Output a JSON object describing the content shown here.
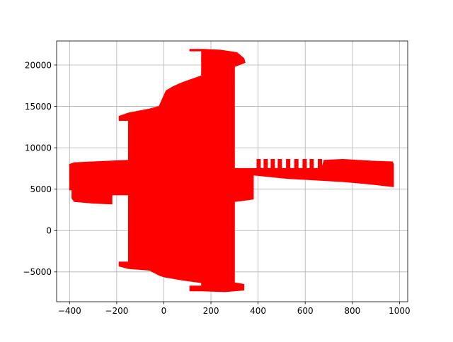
{
  "chart_data": {
    "type": "area",
    "title": "",
    "xlabel": "",
    "ylabel": "",
    "xlim": [
      -455,
      1035
    ],
    "ylim": [
      -8600,
      22900
    ],
    "xticks": [
      -400,
      -200,
      0,
      200,
      400,
      600,
      800,
      1000
    ],
    "yticks": [
      -5000,
      0,
      5000,
      10000,
      15000,
      20000
    ],
    "xtick_labels": [
      "−400",
      "−200",
      "0",
      "200",
      "400",
      "600",
      "800",
      "1000"
    ],
    "ytick_labels": [
      "−5000",
      "0",
      "5000",
      "10000",
      "15000",
      "20000"
    ],
    "grid": true,
    "legend": "none",
    "fill_color": "#ff0000",
    "grid_color": "#b0b0b0",
    "series": [
      {
        "fill": [
          [
            -400,
            8000
          ],
          [
            -380,
            8200
          ],
          [
            -300,
            8300
          ],
          [
            -150,
            8500
          ],
          [
            -150,
            13300
          ],
          [
            -190,
            13300
          ],
          [
            -190,
            13800
          ],
          [
            -150,
            14200
          ],
          [
            -60,
            14700
          ],
          [
            -20,
            15000
          ],
          [
            0,
            16300
          ],
          [
            10,
            16900
          ],
          [
            40,
            17400
          ],
          [
            80,
            17900
          ],
          [
            160,
            18700
          ],
          [
            160,
            21700
          ],
          [
            110,
            21700
          ],
          [
            110,
            21900
          ],
          [
            170,
            21900
          ],
          [
            240,
            21800
          ],
          [
            310,
            21500
          ],
          [
            340,
            20800
          ],
          [
            345,
            20300
          ],
          [
            300,
            19800
          ],
          [
            300,
            7500
          ],
          [
            395,
            7500
          ],
          [
            395,
            8600
          ],
          [
            410,
            8600
          ],
          [
            410,
            7500
          ],
          [
            425,
            7500
          ],
          [
            425,
            8600
          ],
          [
            440,
            8600
          ],
          [
            440,
            7500
          ],
          [
            455,
            7500
          ],
          [
            455,
            8600
          ],
          [
            470,
            8600
          ],
          [
            470,
            7500
          ],
          [
            485,
            7500
          ],
          [
            485,
            8600
          ],
          [
            500,
            8600
          ],
          [
            500,
            7500
          ],
          [
            520,
            7500
          ],
          [
            520,
            8600
          ],
          [
            535,
            8600
          ],
          [
            535,
            7500
          ],
          [
            555,
            7500
          ],
          [
            555,
            8600
          ],
          [
            570,
            8600
          ],
          [
            570,
            7500
          ],
          [
            590,
            7500
          ],
          [
            590,
            8600
          ],
          [
            605,
            8600
          ],
          [
            605,
            7500
          ],
          [
            620,
            7500
          ],
          [
            620,
            8600
          ],
          [
            635,
            8600
          ],
          [
            635,
            7500
          ],
          [
            655,
            7500
          ],
          [
            655,
            8600
          ],
          [
            670,
            8600
          ],
          [
            670,
            7500
          ],
          [
            680,
            8500
          ],
          [
            760,
            8600
          ],
          [
            880,
            8400
          ],
          [
            970,
            8300
          ],
          [
            975,
            8000
          ],
          [
            975,
            5300
          ],
          [
            880,
            5600
          ],
          [
            760,
            5900
          ],
          [
            640,
            6100
          ],
          [
            520,
            6300
          ],
          [
            450,
            6500
          ],
          [
            380,
            6700
          ],
          [
            380,
            3800
          ],
          [
            330,
            3600
          ],
          [
            300,
            3500
          ],
          [
            300,
            -6300
          ],
          [
            340,
            -6500
          ],
          [
            340,
            -7200
          ],
          [
            260,
            -7400
          ],
          [
            160,
            -7300
          ],
          [
            110,
            -7300
          ],
          [
            110,
            -6700
          ],
          [
            160,
            -6700
          ],
          [
            160,
            -6300
          ],
          [
            80,
            -6000
          ],
          [
            0,
            -5600
          ],
          [
            -20,
            -5400
          ],
          [
            -60,
            -4800
          ],
          [
            -150,
            -4600
          ],
          [
            -190,
            -4300
          ],
          [
            -190,
            -3800
          ],
          [
            -150,
            -3800
          ],
          [
            -150,
            4300
          ],
          [
            -220,
            4300
          ],
          [
            -220,
            3200
          ],
          [
            -300,
            3300
          ],
          [
            -380,
            3500
          ],
          [
            -390,
            3900
          ],
          [
            -390,
            4900
          ],
          [
            -400,
            4900
          ]
        ]
      }
    ]
  }
}
